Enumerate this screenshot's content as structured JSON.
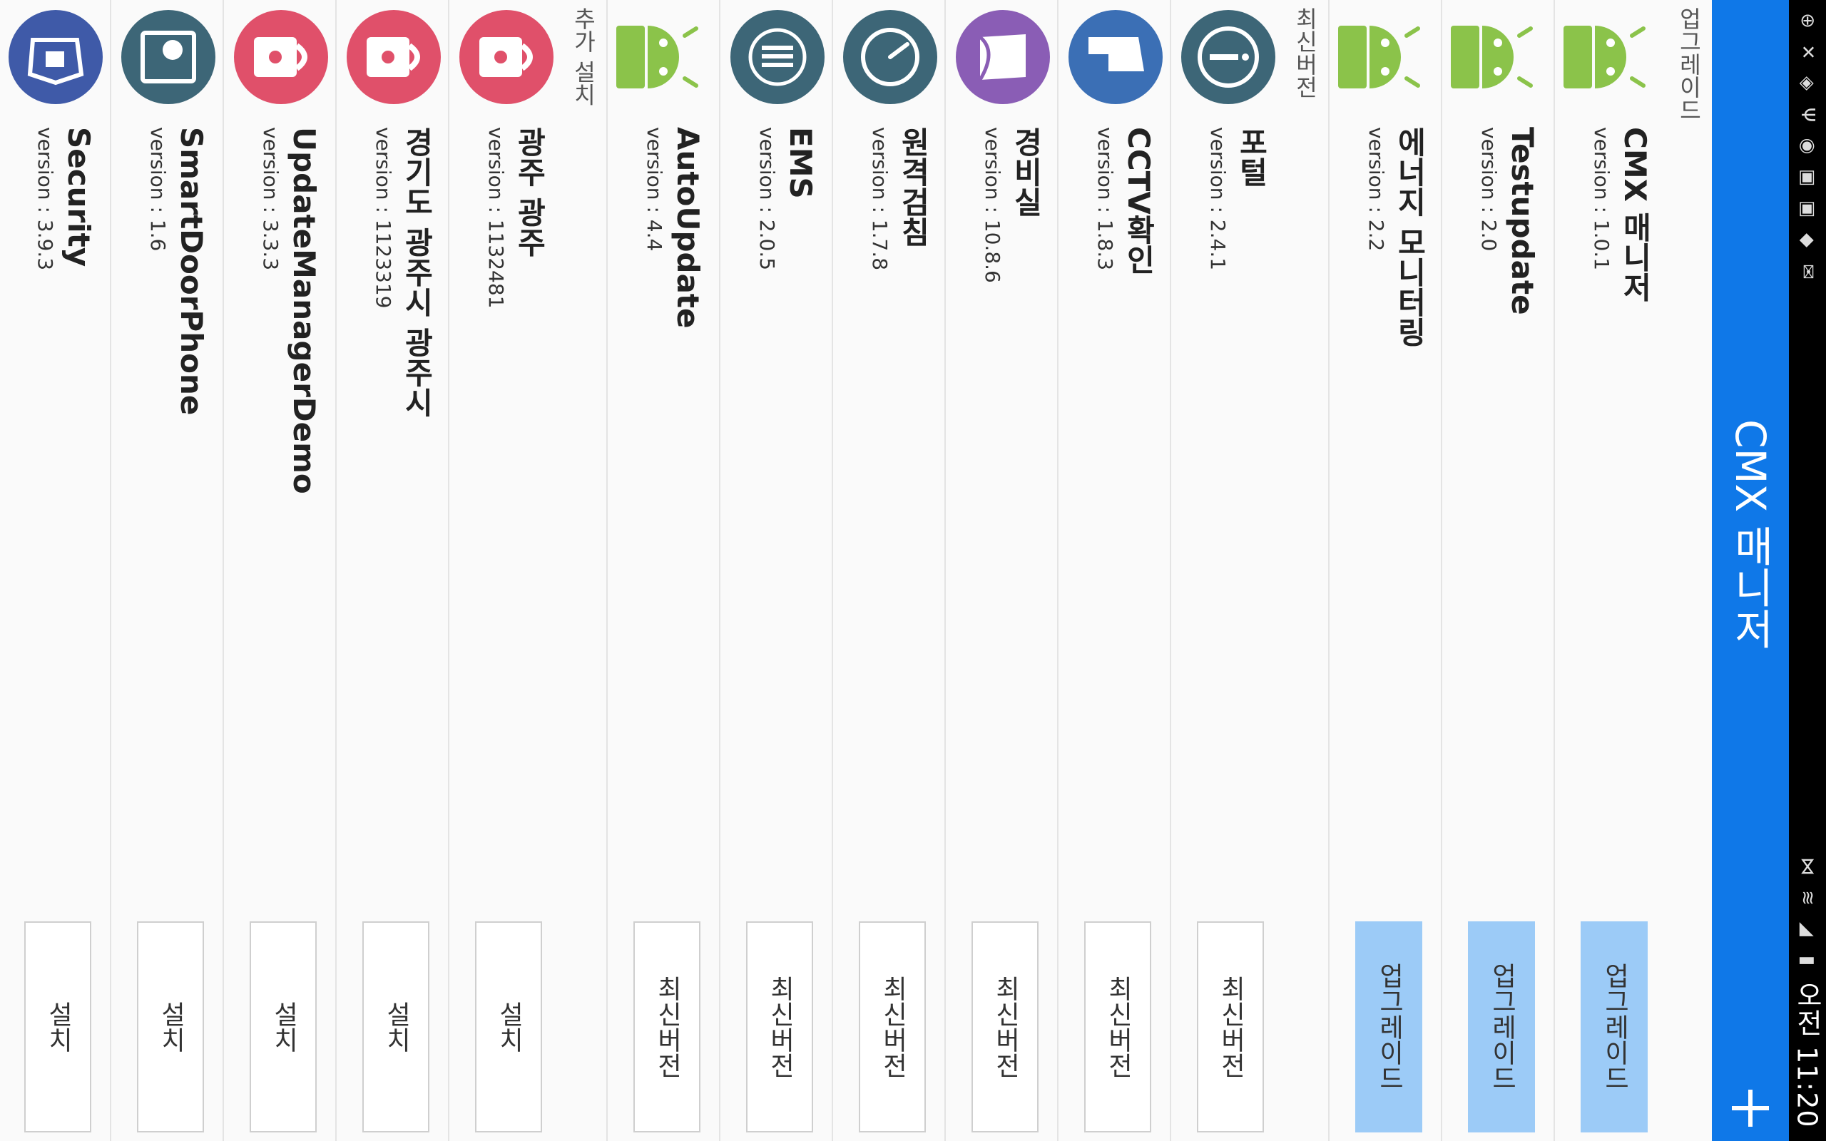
{
  "status_bar": {
    "time": "오전 11:20",
    "icons": [
      "notification-icon",
      "close-icon",
      "shield-icon",
      "usb-icon",
      "sync-icon",
      "apps-icon",
      "apps-icon",
      "store-icon",
      "mail-icon"
    ],
    "right_icons": [
      "vibrate-icon",
      "wifi-icon",
      "signal-icon",
      "battery-icon"
    ]
  },
  "app_bar": {
    "title": "CMX 매니저",
    "add_label": "+"
  },
  "sections": {
    "upgrade": {
      "header": "업그레이드",
      "items": [
        {
          "name": "CMX 매니저",
          "version": "version : 1.0.1",
          "action": "업그레이드",
          "icon": "android-icon"
        },
        {
          "name": "Testupdate",
          "version": "version : 2.0",
          "action": "업그레이드",
          "icon": "android-icon"
        },
        {
          "name": "에너지 모니터링",
          "version": "version : 2.2",
          "action": "업그레이드",
          "icon": "android-icon"
        }
      ]
    },
    "latest": {
      "header": "최신버전",
      "items": [
        {
          "name": "포털",
          "version": "version : 2.4.1",
          "action": "최신버전",
          "icon": "info-icon"
        },
        {
          "name": "CCTV확인",
          "version": "version : 1.8.3",
          "action": "최신버전",
          "icon": "building-icon"
        },
        {
          "name": "경비실",
          "version": "version : 10.8.6",
          "action": "최신버전",
          "icon": "book-icon"
        },
        {
          "name": "원격검침",
          "version": "version : 1.7.8",
          "action": "최신버전",
          "icon": "gauge-icon"
        },
        {
          "name": "EMS",
          "version": "version : 2.0.5",
          "action": "최신버전",
          "icon": "ems-icon"
        },
        {
          "name": "AutoUpdate",
          "version": "version : 4.4",
          "action": "최신버전",
          "icon": "android-icon"
        }
      ]
    },
    "install": {
      "header": "추가 설치",
      "items": [
        {
          "name": "광주 광주",
          "version": "version : 1132481",
          "action": "설치",
          "icon": "lock-icon"
        },
        {
          "name": "경기도 광주시 광주시",
          "version": "version : 1123319",
          "action": "설치",
          "icon": "lock-icon"
        },
        {
          "name": "UpdateManagerDemo",
          "version": "version : 3.3.3",
          "action": "설치",
          "icon": "lock-icon"
        },
        {
          "name": "SmartDoorPhone",
          "version": "version : 1.6",
          "action": "설치",
          "icon": "doorphone-icon"
        },
        {
          "name": "Security",
          "version": "version : 3.9.3",
          "action": "설치",
          "icon": "home-shield-icon"
        }
      ]
    }
  },
  "colors": {
    "app_bar": "#0f78e8",
    "upgrade_button": "#9ccbf7",
    "android_green": "#8bc34a",
    "lock_red": "#e0506a",
    "teal_icon": "#3d6677",
    "purple_icon": "#8a5db5",
    "blue_icon": "#3b6fb5"
  }
}
